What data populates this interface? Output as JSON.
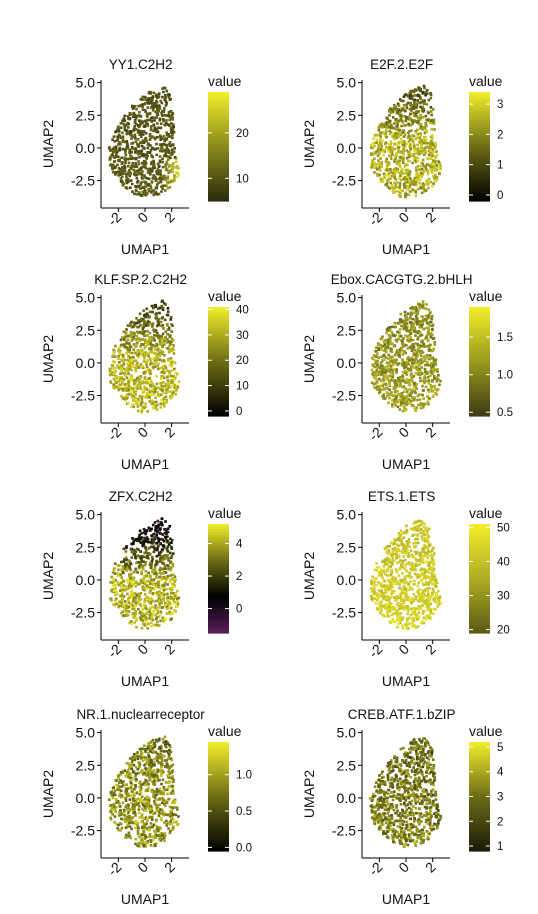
{
  "figure": {
    "panels": [
      {
        "title": "YY1.C2H2",
        "legend_title": "value",
        "colorbar_ticks": [
          {
            "v": 10,
            "l": "10"
          },
          {
            "v": 20,
            "l": "20"
          }
        ],
        "color_range": [
          5,
          29
        ],
        "colors": [
          "#2b2b0d",
          "#8a8a1c",
          "#f2ee2a"
        ],
        "pattern": "YY1"
      },
      {
        "title": "E2F.2.E2F",
        "legend_title": "value",
        "colorbar_ticks": [
          {
            "v": 0,
            "l": "0"
          },
          {
            "v": 1,
            "l": "1"
          },
          {
            "v": 2,
            "l": "2"
          },
          {
            "v": 3,
            "l": "3"
          }
        ],
        "color_range": [
          -0.2,
          3.4
        ],
        "colors": [
          "#000000",
          "#6d6d16",
          "#f2ee2a"
        ],
        "pattern": "E2F"
      },
      {
        "title": "KLF.SP.2.C2H2",
        "legend_title": "value",
        "colorbar_ticks": [
          {
            "v": 0,
            "l": "0"
          },
          {
            "v": 10,
            "l": "10"
          },
          {
            "v": 20,
            "l": "20"
          },
          {
            "v": 30,
            "l": "30"
          },
          {
            "v": 40,
            "l": "40"
          }
        ],
        "color_range": [
          -2,
          41
        ],
        "colors": [
          "#000000",
          "#6d6d16",
          "#f2ee2a"
        ],
        "pattern": "KLF"
      },
      {
        "title": "Ebox.CACGTG.2.bHLH",
        "legend_title": "value",
        "colorbar_ticks": [
          {
            "v": 0.5,
            "l": "0.5"
          },
          {
            "v": 1.0,
            "l": "1.0"
          },
          {
            "v": 1.5,
            "l": "1.5"
          }
        ],
        "color_range": [
          0.45,
          1.9
        ],
        "colors": [
          "#3b3b12",
          "#9a9a1f",
          "#f2ee2a"
        ],
        "pattern": "EBOX"
      },
      {
        "title": "ZFX.C2H2",
        "legend_title": "value",
        "colorbar_ticks": [
          {
            "v": 0,
            "l": "0"
          },
          {
            "v": 2,
            "l": "2"
          },
          {
            "v": 4,
            "l": "4"
          }
        ],
        "color_range": [
          -1.5,
          5.2
        ],
        "colors": [
          "#5a1f5a",
          "#000000",
          "#6d6d16",
          "#f2ee2a"
        ],
        "pattern": "ZFX"
      },
      {
        "title": "ETS.1.ETS",
        "legend_title": "value",
        "colorbar_ticks": [
          {
            "v": 20,
            "l": "20"
          },
          {
            "v": 30,
            "l": "30"
          },
          {
            "v": 40,
            "l": "40"
          },
          {
            "v": 50,
            "l": "50"
          }
        ],
        "color_range": [
          19,
          51
        ],
        "colors": [
          "#5a5a14",
          "#b0ad24",
          "#f2ee2a"
        ],
        "pattern": "ETS"
      },
      {
        "title": "NR.1.nuclearreceptor",
        "legend_title": "value",
        "colorbar_ticks": [
          {
            "v": 0.0,
            "l": "0.0"
          },
          {
            "v": 0.5,
            "l": "0.5"
          },
          {
            "v": 1.0,
            "l": "1.0"
          }
        ],
        "color_range": [
          -0.05,
          1.45
        ],
        "colors": [
          "#000000",
          "#6d6d16",
          "#f2ee2a"
        ],
        "pattern": "NR"
      },
      {
        "title": "CREB.ATF.1.bZIP",
        "legend_title": "value",
        "colorbar_ticks": [
          {
            "v": 1,
            "l": "1"
          },
          {
            "v": 2,
            "l": "2"
          },
          {
            "v": 3,
            "l": "3"
          },
          {
            "v": 4,
            "l": "4"
          },
          {
            "v": 5,
            "l": "5"
          }
        ],
        "color_range": [
          0.8,
          5.2
        ],
        "colors": [
          "#1a1a08",
          "#6d6d16",
          "#f2ee2a"
        ],
        "pattern": "CREB"
      }
    ]
  },
  "chart_data": {
    "type": "scatter",
    "layout": "4 rows x 2 columns of UMAP feature plots",
    "xlabel": "UMAP1",
    "ylabel": "UMAP2",
    "x_ticks": [
      -2,
      0,
      2
    ],
    "x_tick_labels": [
      "-2",
      "0",
      "2"
    ],
    "y_ticks": [
      -2.5,
      0.0,
      2.5,
      5.0
    ],
    "y_tick_labels": [
      "-2.5",
      "0.0",
      "2.5",
      "5.0"
    ],
    "xlim": [
      -3.3,
      3.3
    ],
    "ylim": [
      -4.6,
      5.2
    ],
    "grid": false,
    "legend_placement": "right"
  }
}
